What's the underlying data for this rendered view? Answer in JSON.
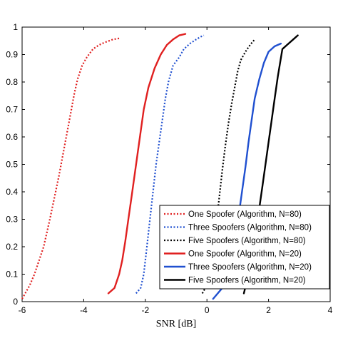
{
  "chart_data": {
    "type": "line",
    "title": "",
    "xlabel": "SNR [dB]",
    "ylabel": "",
    "xlim": [
      -6,
      4
    ],
    "ylim": [
      0,
      1
    ],
    "xticks": [
      -6,
      -4,
      -2,
      0,
      2,
      4
    ],
    "yticks": [
      0,
      0.1,
      0.2,
      0.3,
      0.4,
      0.5,
      0.6,
      0.7,
      0.8,
      0.9,
      1
    ],
    "xtick_labels": [
      "-6",
      "-4",
      "-2",
      "0",
      "2",
      "4"
    ],
    "ytick_labels": [
      "0",
      "0.1",
      "0.2",
      "0.3",
      "0.4",
      "0.5",
      "0.6",
      "0.7",
      "0.8",
      "0.9",
      "1"
    ],
    "grid": false,
    "legend_position": "lower-right",
    "series": [
      {
        "name": "One Spoofer (Algorithm, N=80)",
        "color": "#e02020",
        "style": "dotted",
        "x": [
          -6.0,
          -5.9,
          -5.75,
          -5.6,
          -5.45,
          -5.3,
          -5.2,
          -5.1,
          -4.95,
          -4.8,
          -4.65,
          -4.5,
          -4.4,
          -4.3,
          -4.2,
          -4.05,
          -3.9,
          -3.7,
          -3.5,
          -3.3,
          -3.05,
          -2.8
        ],
        "y": [
          0.01,
          0.03,
          0.06,
          0.1,
          0.15,
          0.2,
          0.25,
          0.3,
          0.38,
          0.46,
          0.55,
          0.64,
          0.7,
          0.76,
          0.81,
          0.86,
          0.89,
          0.92,
          0.935,
          0.945,
          0.955,
          0.96
        ]
      },
      {
        "name": "Three Spoofers (Algorithm, N=80)",
        "color": "#2050d0",
        "style": "dotted",
        "x": [
          -2.3,
          -2.15,
          -2.05,
          -1.95,
          -1.85,
          -1.75,
          -1.65,
          -1.55,
          -1.45,
          -1.35,
          -1.25,
          -1.1,
          -0.9,
          -0.75,
          -0.55,
          -0.35,
          -0.2,
          -0.1
        ],
        "y": [
          0.03,
          0.05,
          0.1,
          0.2,
          0.3,
          0.4,
          0.5,
          0.58,
          0.66,
          0.74,
          0.8,
          0.86,
          0.89,
          0.92,
          0.94,
          0.955,
          0.965,
          0.97
        ]
      },
      {
        "name": "Five Spoofers (Algorithm, N=80)",
        "color": "#000000",
        "style": "dotted",
        "x": [
          -0.15,
          0.0,
          0.1,
          0.2,
          0.3,
          0.4,
          0.5,
          0.6,
          0.7,
          0.8,
          0.9,
          1.0,
          1.1,
          1.25,
          1.4,
          1.55
        ],
        "y": [
          0.03,
          0.06,
          0.1,
          0.18,
          0.28,
          0.38,
          0.48,
          0.57,
          0.65,
          0.72,
          0.78,
          0.84,
          0.88,
          0.91,
          0.935,
          0.955
        ]
      },
      {
        "name": "One Spoofer (Algorithm, N=20)",
        "color": "#e02020",
        "style": "solid",
        "x": [
          -3.2,
          -3.0,
          -2.85,
          -2.75,
          -2.65,
          -2.55,
          -2.45,
          -2.35,
          -2.25,
          -2.15,
          -2.05,
          -1.9,
          -1.7,
          -1.5,
          -1.3,
          -1.1,
          -0.9,
          -0.7
        ],
        "y": [
          0.03,
          0.05,
          0.1,
          0.15,
          0.22,
          0.3,
          0.38,
          0.46,
          0.54,
          0.62,
          0.7,
          0.78,
          0.85,
          0.9,
          0.935,
          0.955,
          0.97,
          0.975
        ]
      },
      {
        "name": "Three Spoofers (Algorithm, N=20)",
        "color": "#2050d0",
        "style": "solid",
        "x": [
          0.2,
          0.5,
          0.7,
          0.85,
          0.95,
          1.05,
          1.15,
          1.25,
          1.35,
          1.45,
          1.55,
          1.7,
          1.85,
          2.0,
          2.2,
          2.4
        ],
        "y": [
          0.01,
          0.05,
          0.1,
          0.17,
          0.25,
          0.33,
          0.41,
          0.49,
          0.58,
          0.66,
          0.74,
          0.81,
          0.87,
          0.91,
          0.93,
          0.94
        ]
      },
      {
        "name": "Five Spoofers (Algorithm, N=20)",
        "color": "#000000",
        "style": "solid",
        "x": [
          1.2,
          1.35,
          1.5,
          1.6,
          1.7,
          1.8,
          1.9,
          2.0,
          2.1,
          2.2,
          2.3,
          2.45,
          2.6,
          2.8,
          2.95
        ],
        "y": [
          0.03,
          0.1,
          0.18,
          0.26,
          0.34,
          0.42,
          0.5,
          0.58,
          0.66,
          0.74,
          0.82,
          0.92,
          0.935,
          0.955,
          0.97
        ]
      }
    ]
  }
}
